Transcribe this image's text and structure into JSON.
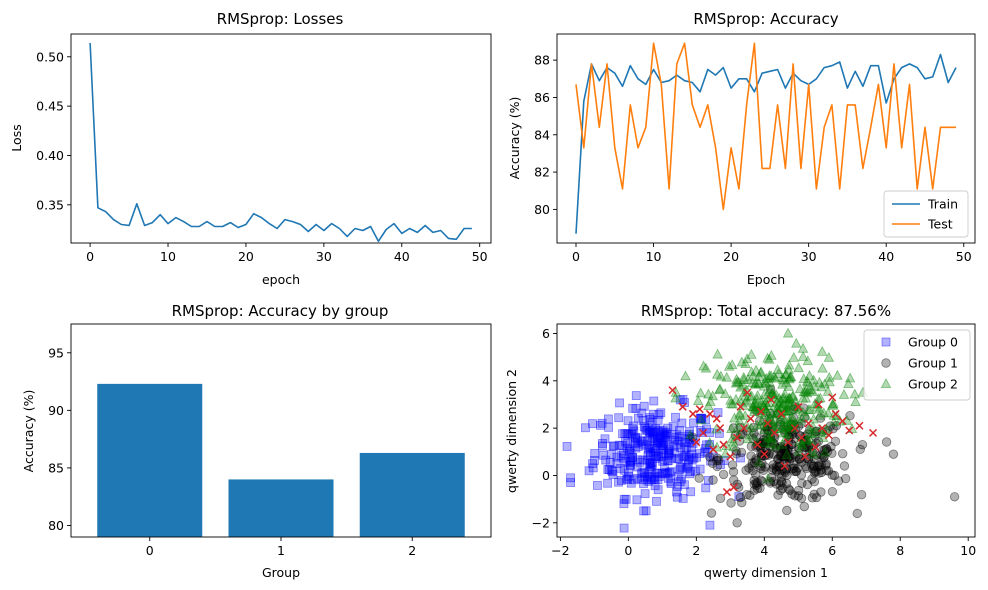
{
  "chart_data": [
    {
      "type": "line",
      "title": "RMSprop: Losses",
      "xlabel": "epoch",
      "ylabel": "Loss",
      "xlim": [
        -2.45,
        51.45
      ],
      "ylim": [
        0.3113,
        0.5231
      ],
      "xticks": [
        0,
        10,
        20,
        30,
        40,
        50
      ],
      "yticks": [
        0.35,
        0.4,
        0.45,
        0.5
      ],
      "xtick_labels": [
        "0",
        "10",
        "20",
        "30",
        "40",
        "50"
      ],
      "ytick_labels": [
        "0.35",
        "0.40",
        "0.45",
        "0.50"
      ],
      "series": [
        {
          "color": "#1f77b4",
          "x": [
            0,
            1,
            2,
            3,
            4,
            5,
            6,
            7,
            8,
            9,
            10,
            11,
            12,
            13,
            14,
            15,
            16,
            17,
            18,
            19,
            20,
            21,
            22,
            23,
            24,
            25,
            26,
            27,
            28,
            29,
            30,
            31,
            32,
            33,
            34,
            35,
            36,
            37,
            38,
            39,
            40,
            41,
            42,
            43,
            44,
            45,
            46,
            47,
            48,
            49
          ],
          "values": [
            0.514,
            0.347,
            0.343,
            0.335,
            0.33,
            0.329,
            0.351,
            0.329,
            0.332,
            0.34,
            0.331,
            0.337,
            0.333,
            0.328,
            0.328,
            0.333,
            0.328,
            0.328,
            0.332,
            0.327,
            0.33,
            0.341,
            0.337,
            0.331,
            0.326,
            0.335,
            0.333,
            0.33,
            0.323,
            0.33,
            0.324,
            0.331,
            0.326,
            0.318,
            0.326,
            0.324,
            0.328,
            0.313,
            0.325,
            0.331,
            0.321,
            0.326,
            0.322,
            0.329,
            0.322,
            0.324,
            0.316,
            0.315,
            0.326,
            0.326
          ]
        }
      ]
    },
    {
      "type": "line",
      "title": "RMSprop: Accuracy",
      "xlabel": "Epoch",
      "ylabel": "Accuracy (%)",
      "xlim": [
        -2.45,
        51.45
      ],
      "ylim": [
        78.2,
        89.4
      ],
      "xticks": [
        0,
        10,
        20,
        30,
        40,
        50
      ],
      "yticks": [
        80,
        82,
        84,
        86,
        88
      ],
      "xtick_labels": [
        "0",
        "10",
        "20",
        "30",
        "40",
        "50"
      ],
      "ytick_labels": [
        "80",
        "82",
        "84",
        "86",
        "88"
      ],
      "legend_position": "lower-right",
      "series": [
        {
          "name": "Train",
          "color": "#1f77b4",
          "x": [
            0,
            1,
            2,
            3,
            4,
            5,
            6,
            7,
            8,
            9,
            10,
            11,
            12,
            13,
            14,
            15,
            16,
            17,
            18,
            19,
            20,
            21,
            22,
            23,
            24,
            25,
            26,
            27,
            28,
            29,
            30,
            31,
            32,
            33,
            34,
            35,
            36,
            37,
            38,
            39,
            40,
            41,
            42,
            43,
            44,
            45,
            46,
            47,
            48,
            49
          ],
          "values": [
            78.7,
            85.8,
            87.8,
            86.9,
            87.6,
            87.3,
            86.6,
            87.7,
            87.0,
            86.7,
            87.5,
            86.8,
            86.9,
            87.2,
            86.9,
            86.8,
            86.3,
            87.5,
            87.2,
            87.6,
            86.5,
            87.0,
            87.0,
            86.3,
            87.3,
            87.4,
            87.5,
            86.5,
            87.3,
            86.9,
            86.7,
            87.0,
            87.6,
            87.7,
            87.9,
            86.5,
            87.4,
            86.6,
            87.7,
            87.7,
            85.7,
            87.0,
            87.6,
            87.8,
            87.6,
            87.0,
            87.1,
            88.3,
            86.8,
            87.6
          ]
        },
        {
          "name": "Test",
          "color": "#ff7f0e",
          "x": [
            0,
            1,
            2,
            3,
            4,
            5,
            6,
            7,
            8,
            9,
            10,
            11,
            12,
            13,
            14,
            15,
            16,
            17,
            18,
            19,
            20,
            21,
            22,
            23,
            24,
            25,
            26,
            27,
            28,
            29,
            30,
            31,
            32,
            33,
            34,
            35,
            36,
            37,
            38,
            39,
            40,
            41,
            42,
            43,
            44,
            45,
            46,
            47,
            48,
            49
          ],
          "values": [
            86.7,
            83.3,
            87.8,
            84.4,
            87.8,
            83.3,
            81.1,
            85.6,
            83.3,
            84.4,
            88.9,
            86.7,
            81.1,
            87.8,
            88.9,
            85.6,
            84.4,
            85.6,
            83.3,
            80.0,
            83.3,
            81.1,
            85.6,
            88.9,
            82.2,
            82.2,
            85.6,
            82.2,
            87.8,
            82.2,
            86.7,
            81.1,
            84.4,
            85.6,
            81.1,
            85.6,
            85.6,
            82.2,
            84.4,
            86.7,
            83.3,
            87.8,
            83.3,
            86.7,
            81.1,
            84.4,
            81.1,
            84.4,
            84.4,
            84.4
          ]
        }
      ]
    },
    {
      "type": "bar",
      "title": "RMSprop: Accuracy by group",
      "xlabel": "Group",
      "ylabel": "Accuracy (%)",
      "categories": [
        "0",
        "1",
        "2"
      ],
      "values": [
        92.3,
        84.0,
        86.3
      ],
      "color": "#1f77b4",
      "ylim": [
        79,
        97.5
      ],
      "yticks": [
        80,
        85,
        90,
        95
      ],
      "ytick_labels": [
        "80",
        "85",
        "90",
        "95"
      ]
    },
    {
      "type": "scatter",
      "title": "RMSprop: Total accuracy: 87.56%",
      "xlabel": "qwerty dimension 1",
      "ylabel": "qwerty dimension 2",
      "xlim": [
        -2.1,
        10.2
      ],
      "ylim": [
        -2.6,
        6.4
      ],
      "xticks": [
        -2,
        0,
        2,
        4,
        6,
        8,
        10
      ],
      "yticks": [
        -2,
        0,
        2,
        4,
        6
      ],
      "xtick_labels": [
        "−2",
        "0",
        "2",
        "4",
        "6",
        "8",
        "10"
      ],
      "ytick_labels": [
        "−2",
        "0",
        "2",
        "4",
        "6"
      ],
      "legend_position": "top-right",
      "groups": [
        {
          "name": "Group 0",
          "color": "#0000ff",
          "marker": "square",
          "center": [
            0.8,
            1.0
          ],
          "spread": [
            0.9,
            0.95
          ],
          "count": 300,
          "extremes": [
            [
              -1.7,
              -0.1
            ],
            [
              -1.7,
              -0.3
            ],
            [
              2.4,
              -2.1
            ]
          ]
        },
        {
          "name": "Group 1",
          "color": "#000000",
          "marker": "circle",
          "center": [
            4.6,
            0.7
          ],
          "spread": [
            0.95,
            0.9
          ],
          "count": 300,
          "extremes": [
            [
              9.6,
              -0.9
            ],
            [
              3.2,
              -2.0
            ],
            [
              7.8,
              0.9
            ]
          ]
        },
        {
          "name": "Group 2",
          "color": "#008000",
          "marker": "triangle",
          "center": [
            4.3,
            3.0
          ],
          "spread": [
            1.0,
            1.1
          ],
          "count": 300,
          "extremes": [
            [
              4.7,
              6.0
            ],
            [
              6.9,
              3.5
            ],
            [
              1.4,
              3.5
            ]
          ]
        }
      ],
      "misclassified_color": "#d62728",
      "misclassified": [
        [
          1.3,
          3.6
        ],
        [
          1.6,
          2.9
        ],
        [
          1.9,
          2.6
        ],
        [
          2.1,
          2.8
        ],
        [
          2.4,
          2.6
        ],
        [
          2.6,
          2.4
        ],
        [
          2.0,
          1.4
        ],
        [
          2.2,
          1.8
        ],
        [
          2.5,
          1.1
        ],
        [
          2.8,
          1.3
        ],
        [
          3.0,
          0.8
        ],
        [
          3.1,
          -0.5
        ],
        [
          2.9,
          -0.7
        ],
        [
          3.2,
          1.6
        ],
        [
          3.4,
          2.0
        ],
        [
          3.6,
          2.4
        ],
        [
          3.9,
          2.7
        ],
        [
          4.1,
          2.2
        ],
        [
          4.3,
          1.8
        ],
        [
          4.5,
          2.6
        ],
        [
          4.7,
          1.4
        ],
        [
          4.9,
          2.0
        ],
        [
          5.1,
          1.6
        ],
        [
          5.3,
          2.2
        ],
        [
          5.5,
          1.2
        ],
        [
          5.7,
          2.0
        ],
        [
          5.9,
          1.7
        ],
        [
          6.1,
          2.6
        ],
        [
          6.3,
          2.3
        ],
        [
          6.5,
          1.9
        ],
        [
          6.8,
          2.1
        ],
        [
          7.2,
          1.8
        ],
        [
          3.8,
          1.3
        ],
        [
          4.0,
          0.9
        ],
        [
          3.5,
          3.5
        ],
        [
          4.2,
          3.2
        ],
        [
          5.0,
          2.9
        ],
        [
          5.6,
          3.0
        ],
        [
          6.0,
          3.3
        ],
        [
          3.3,
          2.9
        ],
        [
          2.7,
          2.0
        ],
        [
          4.6,
          0.4
        ],
        [
          5.2,
          0.8
        ]
      ]
    }
  ]
}
